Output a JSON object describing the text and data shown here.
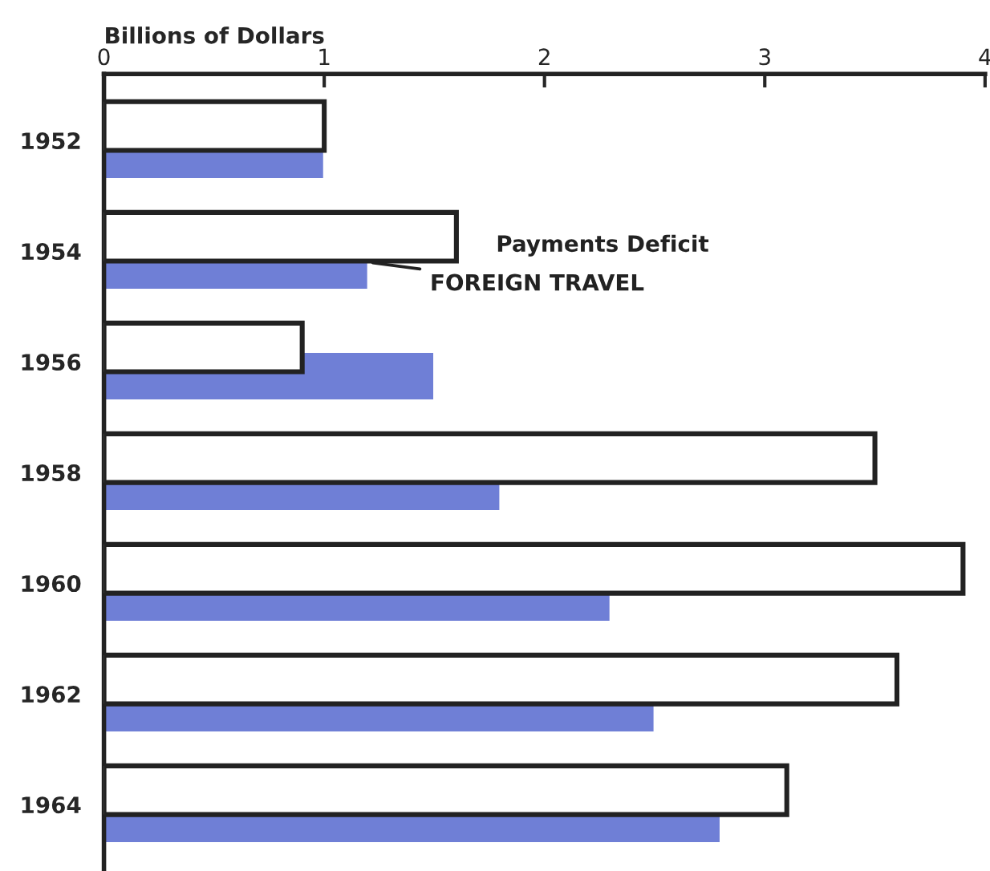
{
  "chart_data": {
    "type": "bar",
    "orientation": "horizontal",
    "xlabel": "Billions of Dollars",
    "categories": [
      "1952",
      "1954",
      "1956",
      "1958",
      "1960",
      "1962",
      "1964"
    ],
    "series": [
      {
        "name": "Payments Deficit",
        "color": "#222222",
        "values": [
          1.0,
          1.6,
          0.9,
          3.5,
          3.9,
          3.6,
          3.1
        ]
      },
      {
        "name": "FOREIGN TRAVEL",
        "color": "#6f7fd6",
        "values": [
          1.0,
          1.2,
          1.5,
          1.8,
          2.3,
          2.5,
          2.8
        ]
      }
    ],
    "xlim": [
      0,
      4
    ],
    "xticks": [
      0,
      1,
      2,
      3,
      4
    ],
    "grid": false,
    "legend": false
  }
}
